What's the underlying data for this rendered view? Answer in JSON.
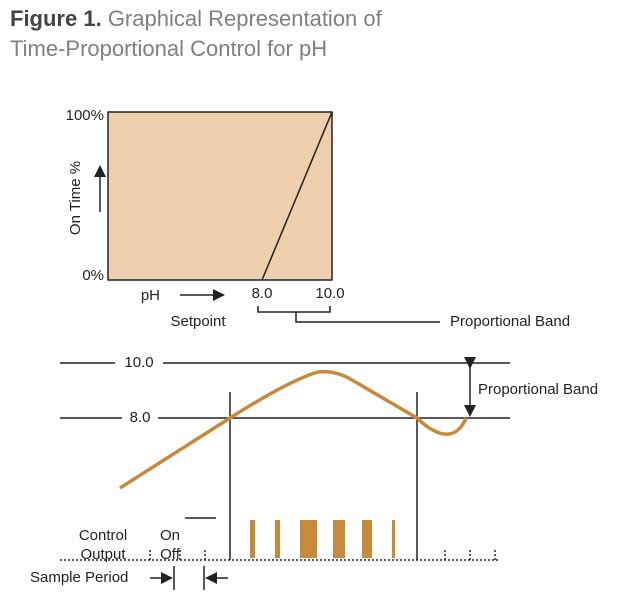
{
  "header": {
    "figure": "Figure 1.",
    "title_line1": "Graphical Representation of",
    "title_line2": "Time-Proportional Control for pH"
  },
  "top_diagram": {
    "y_top": "100%",
    "y_bottom": "0%",
    "y_axis": "On Time %",
    "x_axis": "pH",
    "setpoint_value": "8.0",
    "max_value": "10.0",
    "setpoint": "Setpoint",
    "band": "Proportional Band"
  },
  "bottom_diagram": {
    "upper_level": "10.0",
    "lower_level": "8.0",
    "band": "Proportional Band",
    "output_line1": "Control",
    "output_line2": "Output",
    "on": "On",
    "off": "Off",
    "sample_period": "Sample Period"
  }
}
